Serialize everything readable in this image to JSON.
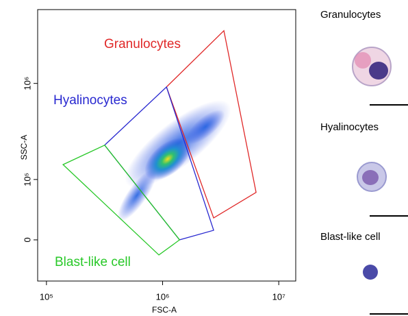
{
  "chart_data": {
    "type": "gate-plot",
    "xlabel": "FSC-A",
    "ylabel": "SSC-A",
    "xscale": "log",
    "yscale": "asinh",
    "y_linear_width": 52000,
    "xlim": [
      84000,
      14000000
    ],
    "ylim": [
      -58000,
      5600000
    ],
    "xticks": [
      {
        "value": 100000,
        "label": "10⁵"
      },
      {
        "value": 1000000,
        "label": "10⁶"
      },
      {
        "value": 10000000,
        "label": "10⁷"
      }
    ],
    "yticks": [
      0,
      {
        "value": 100000,
        "label": "10⁵"
      },
      {
        "value": 1000000,
        "label": "10⁶"
      }
    ],
    "gates": [
      {
        "name": "Granulocytes",
        "color": "#e02828",
        "x": [
          1080000,
          3370000,
          6380000,
          2750000
        ],
        "y": [
          920000,
          3420000,
          70100,
          27800
        ]
      },
      {
        "name": "Hyalinocytes",
        "color": "#2828d0",
        "x": [
          317000,
          1080000,
          2750000,
          1400000
        ],
        "y": [
          234000,
          920000,
          11700,
          0
        ]
      },
      {
        "name": "Blast-like cell",
        "color": "#28c828",
        "x": [
          139000,
          317000,
          1400000,
          929000
        ],
        "y": [
          146000,
          234000,
          0,
          -18700
        ]
      }
    ]
  },
  "panels": [
    {
      "title": "Granulocytes"
    },
    {
      "title": "Hyalinocytes"
    },
    {
      "title": "Blast-like cell"
    }
  ]
}
